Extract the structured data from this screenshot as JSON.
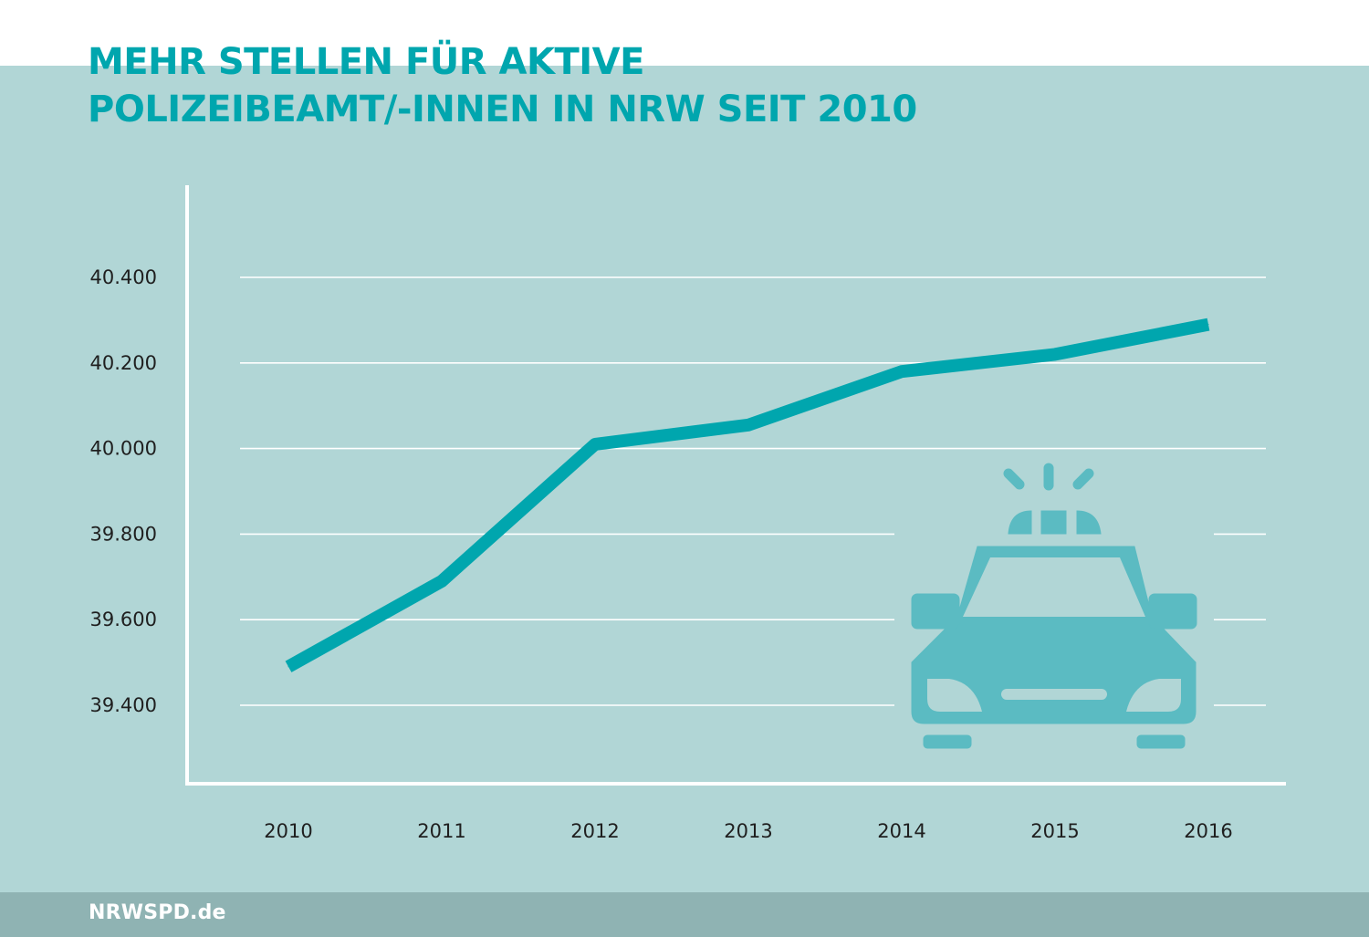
{
  "title": {
    "line1": "MEHR STELLEN FÜR AKTIVE",
    "line2": "POLIZEIBEAMT/-INNEN IN NRW SEIT 2010"
  },
  "footer": {
    "text": "NRWSPD.de"
  },
  "colors": {
    "accent": "#00a6ae",
    "panel": "#b1d6d6",
    "footer": "#8fb3b3",
    "icon": "#5bbbc2",
    "grid": "#ffffff"
  },
  "icons": {
    "illustration": "police-car-icon"
  },
  "chart_data": {
    "type": "line",
    "title": "MEHR STELLEN FÜR AKTIVE POLIZEIBEAMT/-INNEN IN NRW SEIT 2010",
    "xlabel": "",
    "ylabel": "",
    "categories": [
      "2010",
      "2011",
      "2012",
      "2013",
      "2014",
      "2015",
      "2016"
    ],
    "series": [
      {
        "values": [
          39490,
          39690,
          40010,
          40055,
          40180,
          40220,
          40290
        ]
      }
    ],
    "yticks": [
      39400,
      39600,
      39800,
      40000,
      40200,
      40400
    ],
    "ytick_labels": [
      "39.400",
      "39.600",
      "39.800",
      "40.000",
      "40.200",
      "40.400"
    ],
    "ylim": [
      39200,
      40600
    ],
    "grid": true,
    "legend": "none"
  }
}
